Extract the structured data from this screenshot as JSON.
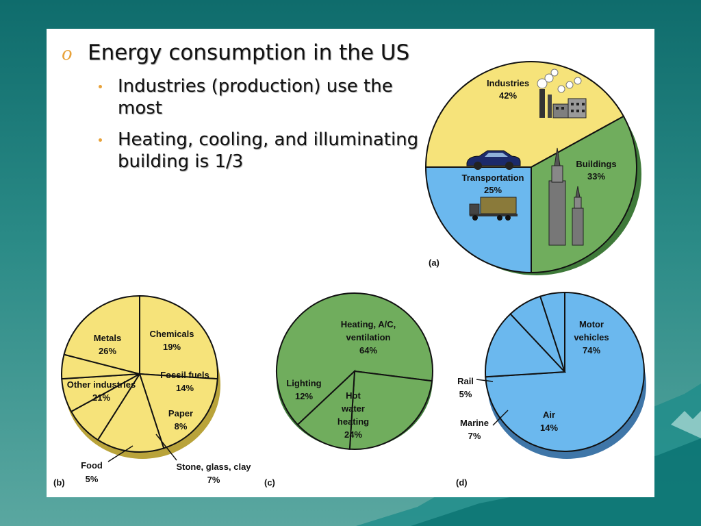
{
  "slide": {
    "bullets": [
      {
        "text": "Energy consumption in the US",
        "sub": [
          "Industries (production) use the most",
          "Heating, cooling, and illuminating building is 1/3"
        ]
      }
    ]
  },
  "colors": {
    "yellow": "#f6e37a",
    "green": "#70ad5d",
    "blue": "#6bb8ee",
    "bullet_accent": "#e8a23a",
    "background": "#0f6c6c"
  },
  "chart_data": [
    {
      "type": "pie",
      "panel": "(a)",
      "title": "",
      "slices": [
        {
          "label": "Industries",
          "value": 42,
          "value_label": "42%",
          "color": "#f6e37a"
        },
        {
          "label": "Buildings",
          "value": 33,
          "value_label": "33%",
          "color": "#70ad5d"
        },
        {
          "label": "Transportation",
          "value": 25,
          "value_label": "25%",
          "color": "#6bb8ee"
        }
      ]
    },
    {
      "type": "pie",
      "panel": "(b)",
      "title": "",
      "slices": [
        {
          "label": "Metals",
          "value": 26,
          "value_label": "26%"
        },
        {
          "label": "Chemicals",
          "value": 19,
          "value_label": "19%"
        },
        {
          "label": "Fossil fuels",
          "value": 14,
          "value_label": "14%"
        },
        {
          "label": "Paper",
          "value": 8,
          "value_label": "8%"
        },
        {
          "label": "Stone, glass, clay",
          "value": 7,
          "value_label": "7%"
        },
        {
          "label": "Food",
          "value": 5,
          "value_label": "5%"
        },
        {
          "label": "Other industries",
          "value": 21,
          "value_label": "21%"
        }
      ]
    },
    {
      "type": "pie",
      "panel": "(c)",
      "title": "",
      "slices": [
        {
          "label": "Heating, A/C, ventilation",
          "value": 64,
          "value_label": "64%"
        },
        {
          "label": "Hot water heating",
          "value": 24,
          "value_label": "24%"
        },
        {
          "label": "Lighting",
          "value": 12,
          "value_label": "12%"
        }
      ]
    },
    {
      "type": "pie",
      "panel": "(d)",
      "title": "",
      "slices": [
        {
          "label": "Motor vehicles",
          "value": 74,
          "value_label": "74%"
        },
        {
          "label": "Air",
          "value": 14,
          "value_label": "14%"
        },
        {
          "label": "Marine",
          "value": 7,
          "value_label": "7%"
        },
        {
          "label": "Rail",
          "value": 5,
          "value_label": "5%"
        }
      ]
    }
  ]
}
